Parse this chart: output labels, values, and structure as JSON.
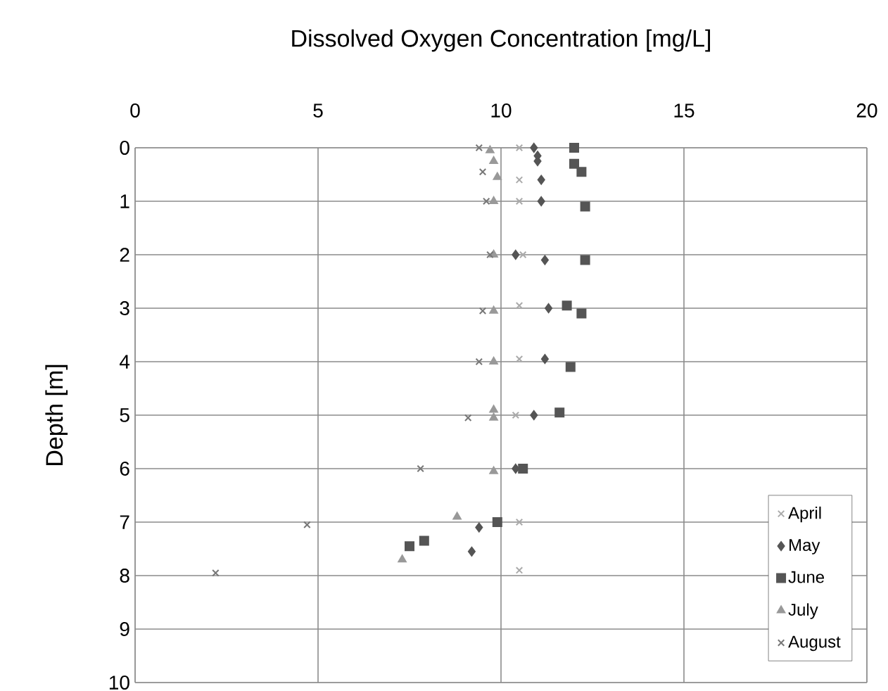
{
  "chart_data": {
    "type": "scatter",
    "xlabel": "Dissolved Oxygen Concentration [mg/L]",
    "ylabel": "Depth [m]",
    "xlim": [
      0,
      20
    ],
    "xticks": [
      0,
      5,
      10,
      15,
      20
    ],
    "ylim": [
      10,
      0
    ],
    "yticks": [
      0,
      1,
      2,
      3,
      4,
      5,
      6,
      7,
      8,
      9,
      10
    ],
    "grid": true,
    "legend": "bottom right",
    "series": [
      {
        "name": "April",
        "color": "#aaaaaa",
        "marker": "cross",
        "x": [
          10.5,
          10.5,
          10.5,
          10.6,
          10.5,
          10.5,
          10.4,
          10.5,
          10.5
        ],
        "values": [
          0,
          0.6,
          1.0,
          2.0,
          2.95,
          3.95,
          5.0,
          7.0,
          7.9
        ]
      },
      {
        "name": "May",
        "color": "#555555",
        "marker": "diamond",
        "x": [
          10.9,
          11.0,
          11.0,
          11.1,
          11.1,
          10.4,
          11.2,
          11.3,
          11.2,
          10.9,
          10.4,
          9.4,
          9.2
        ],
        "values": [
          0,
          0.15,
          0.25,
          0.6,
          1.0,
          2.0,
          2.1,
          3.0,
          3.95,
          5.0,
          6.0,
          7.1,
          7.55
        ]
      },
      {
        "name": "June",
        "color": "#555555",
        "marker": "square",
        "x": [
          12.0,
          null,
          null,
          12.0,
          12.2,
          12.3,
          12.3,
          11.8,
          12.2,
          11.9,
          11.6,
          10.6,
          9.9,
          7.9,
          7.5
        ],
        "values": [
          0,
          null,
          null,
          0.3,
          0.45,
          1.1,
          2.1,
          2.95,
          3.1,
          4.1,
          4.95,
          6.0,
          7.0,
          7.35,
          7.45
        ]
      },
      {
        "name": "July",
        "color": "#999999",
        "marker": "triangle",
        "x": [
          9.7,
          9.8,
          9.9,
          9.8,
          9.8,
          9.8,
          9.8,
          9.8,
          9.8,
          9.8,
          8.8,
          7.3
        ],
        "values": [
          0.05,
          0.25,
          0.55,
          1.0,
          2.0,
          3.05,
          4.0,
          4.9,
          5.05,
          6.05,
          6.9,
          7.7
        ]
      },
      {
        "name": "August",
        "color": "#777777",
        "marker": "cross",
        "x": [
          9.4,
          9.5,
          9.6,
          9.7,
          9.5,
          9.4,
          9.1,
          7.8,
          4.7,
          2.2
        ],
        "values": [
          0,
          0.45,
          1.0,
          2.0,
          3.05,
          4.0,
          5.05,
          6.0,
          7.05,
          7.95
        ]
      }
    ]
  }
}
